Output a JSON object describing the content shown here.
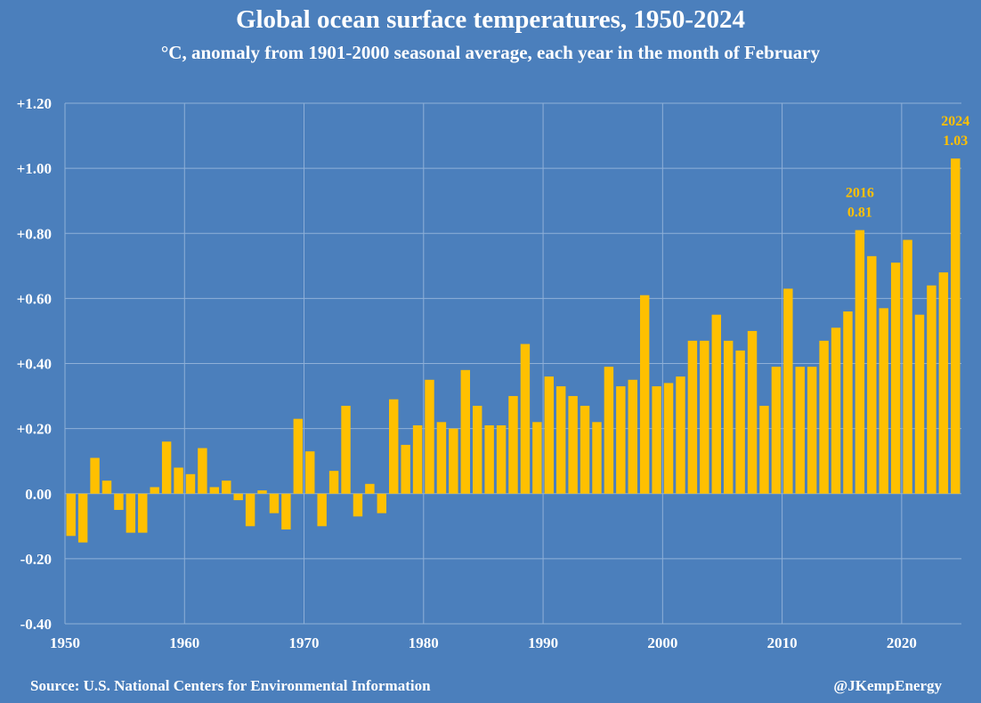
{
  "chart_data": {
    "type": "bar",
    "title": "Global ocean surface temperatures, 1950-2024",
    "subtitle": "°C, anomaly from 1901-2000 seasonal average, each year in the month of  February",
    "xlabel": "",
    "ylabel": "",
    "ylim": [
      -0.4,
      1.2
    ],
    "yticks": [
      "+1.20",
      "+1.00",
      "+0.80",
      "+0.60",
      "+0.40",
      "+0.20",
      "0.00",
      "-0.20",
      "-0.40"
    ],
    "ytick_values": [
      1.2,
      1.0,
      0.8,
      0.6,
      0.4,
      0.2,
      0,
      -0.2,
      -0.4
    ],
    "xticks": [
      "1950",
      "1960",
      "1970",
      "1980",
      "1990",
      "2000",
      "2010",
      "2020"
    ],
    "xlim": [
      1950,
      2025
    ],
    "grid": true,
    "start_year": 1950,
    "values": [
      -0.13,
      -0.15,
      0.11,
      0.04,
      -0.05,
      -0.12,
      -0.12,
      0.02,
      0.16,
      0.08,
      0.06,
      0.14,
      0.02,
      0.04,
      -0.02,
      -0.1,
      0.01,
      -0.06,
      -0.11,
      0.23,
      0.13,
      -0.1,
      0.07,
      0.27,
      -0.07,
      0.03,
      -0.06,
      0.29,
      0.15,
      0.21,
      0.35,
      0.22,
      0.2,
      0.38,
      0.27,
      0.21,
      0.21,
      0.3,
      0.46,
      0.22,
      0.36,
      0.33,
      0.3,
      0.27,
      0.22,
      0.39,
      0.33,
      0.35,
      0.61,
      0.33,
      0.34,
      0.36,
      0.47,
      0.47,
      0.55,
      0.47,
      0.44,
      0.5,
      0.27,
      0.39,
      0.63,
      0.39,
      0.39,
      0.47,
      0.51,
      0.56,
      0.81,
      0.73,
      0.57,
      0.71,
      0.78,
      0.55,
      0.64,
      0.68,
      1.03
    ],
    "annotations": [
      {
        "year": "2016",
        "value": "0.81",
        "x": 2016,
        "y": 0.81
      },
      {
        "year": "2024",
        "value": "1.03",
        "x": 2024,
        "y": 1.03
      }
    ],
    "bar_color": "#ffc000"
  },
  "footer": {
    "source": "Source: U.S. National Centers for Environmental Information",
    "credit": "@JKempEnergy"
  }
}
